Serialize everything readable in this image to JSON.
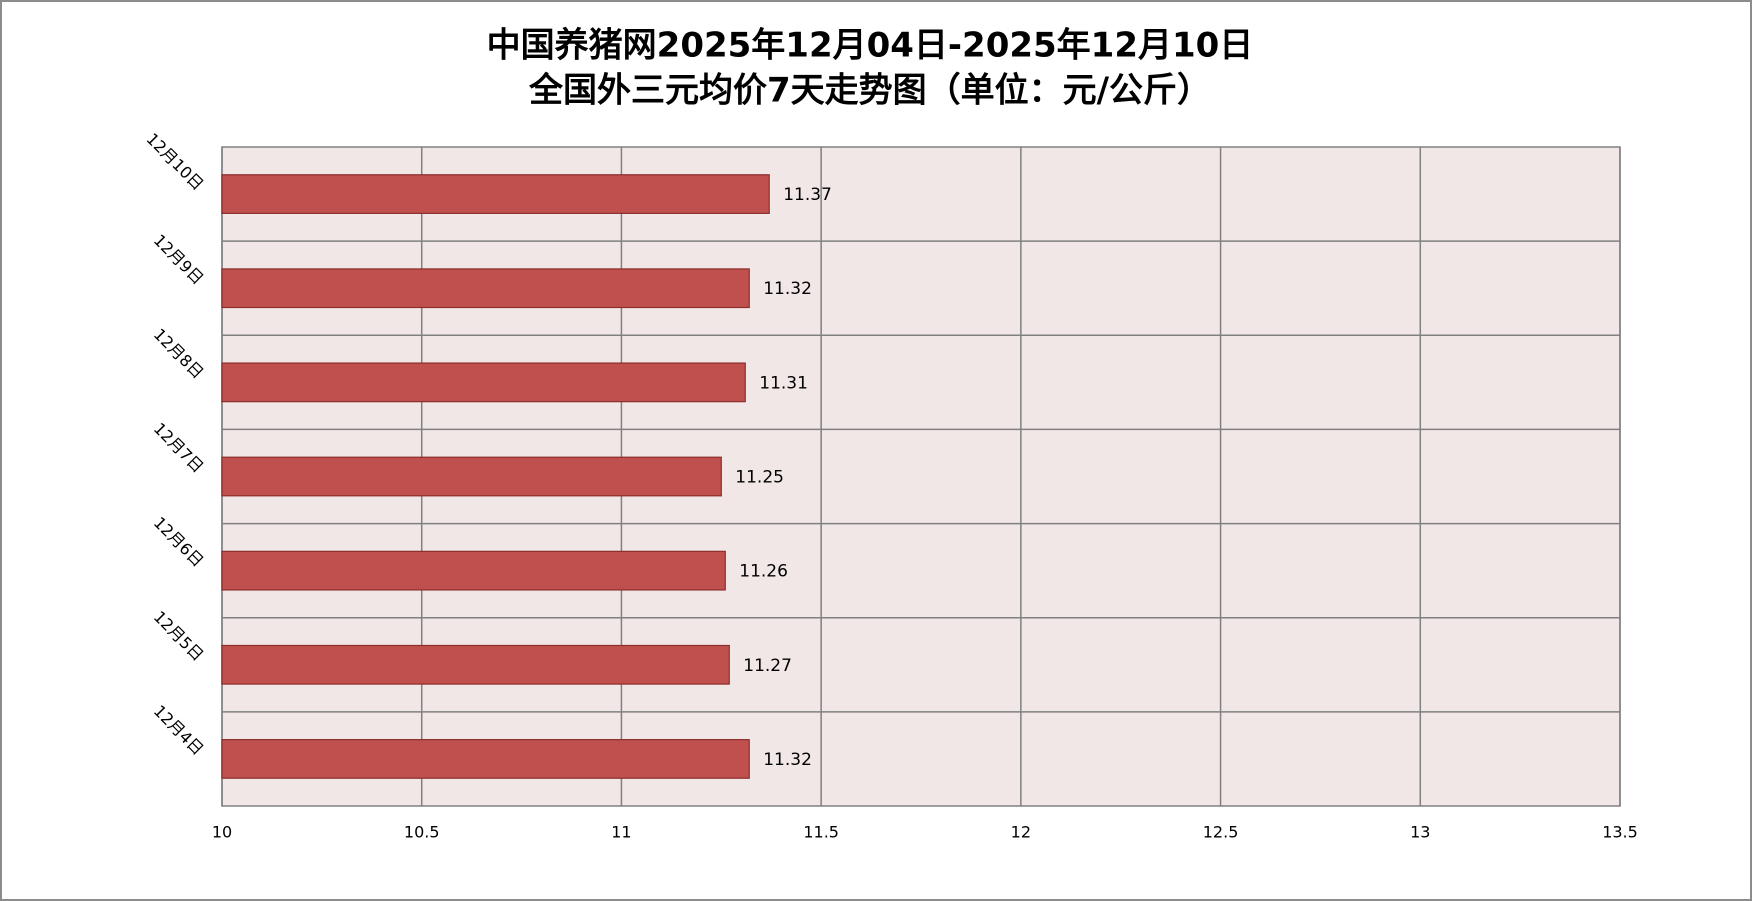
{
  "chart_data": {
    "type": "barh",
    "title": [
      "中国养猪网2025年12月04日-2025年12月10日",
      "全国外三元均价7天走势图（单位：元/公斤）"
    ],
    "categories": [
      "12月4日",
      "12月5日",
      "12月6日",
      "12月7日",
      "12月8日",
      "12月9日",
      "12月10日"
    ],
    "values": [
      11.32,
      11.27,
      11.26,
      11.25,
      11.31,
      11.32,
      11.37
    ],
    "color": "#c0504d",
    "xlim": [
      10,
      13.5
    ],
    "xticks": [
      10,
      10.5,
      11,
      11.5,
      12,
      12.5,
      13,
      13.5
    ],
    "grid": true
  }
}
